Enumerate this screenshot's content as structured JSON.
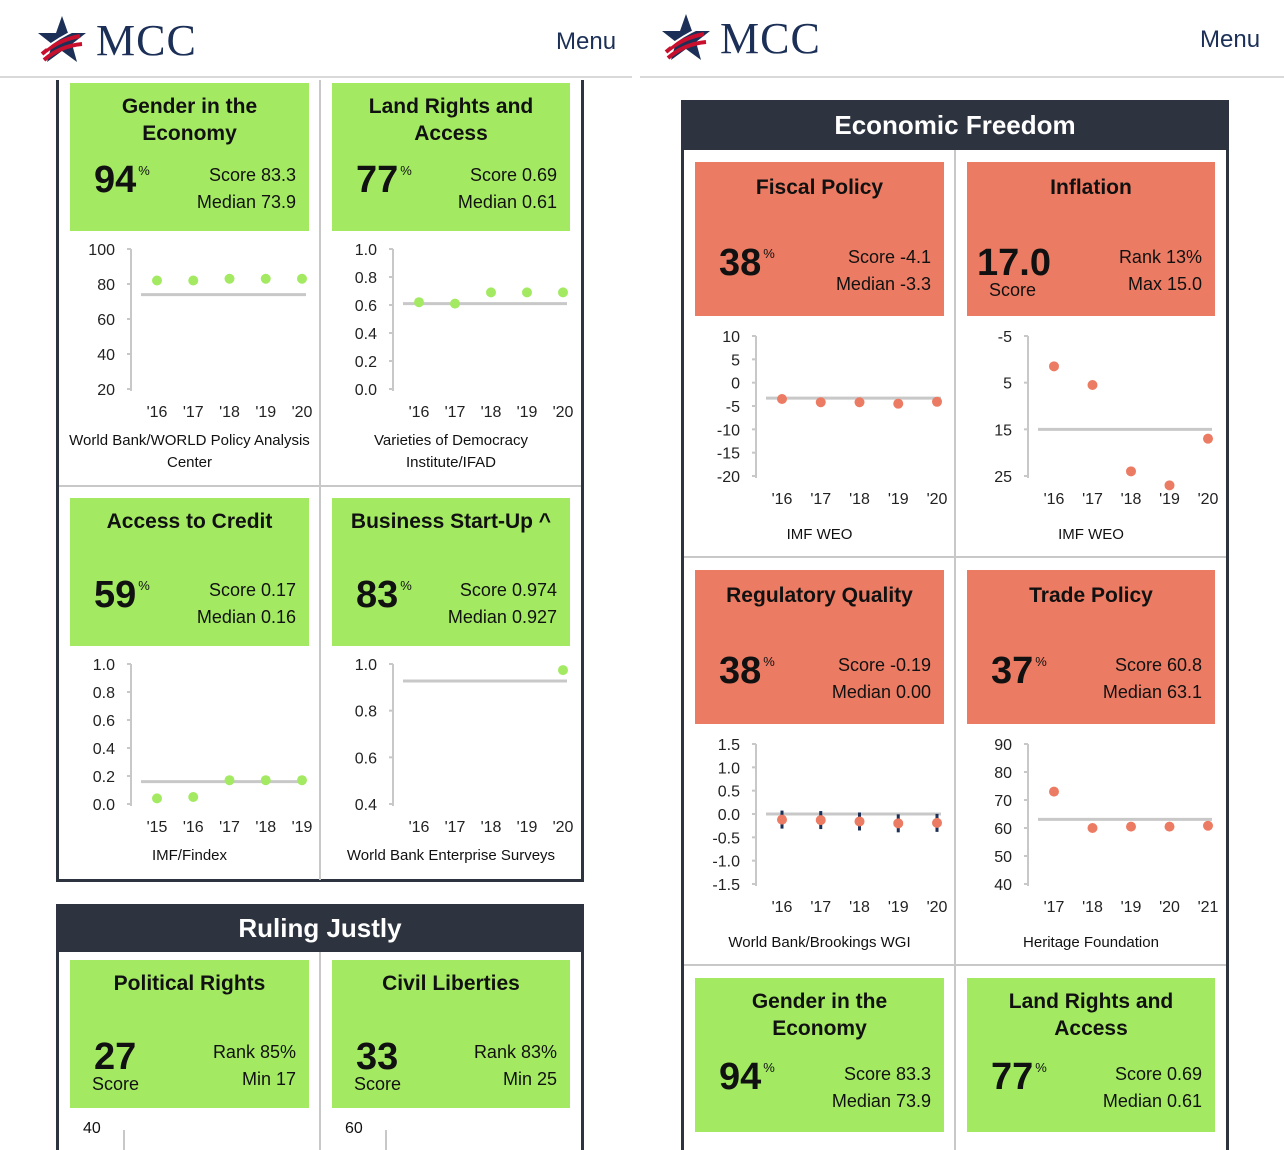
{
  "header": {
    "logo_text": "MCC",
    "menu_label": "Menu"
  },
  "colors": {
    "pass": "#a3ea62",
    "fail": "#ec7b63",
    "dot_pass": "#a3ea62",
    "dot_fail": "#ec7b63",
    "median_line": "#c8c8c8",
    "section_bar": "#2d3440",
    "brand_navy": "#1b2f57"
  },
  "left": {
    "cards": [
      {
        "id": "gender",
        "title_lines": [
          "Gender in the",
          "Economy"
        ],
        "percent": "94",
        "pct_symbol": "%",
        "stat1": "Score 83.3",
        "stat2": "Median 73.9",
        "source_lines": [
          "World Bank/WORLD Policy Analysis",
          "Center"
        ]
      },
      {
        "id": "land",
        "title_lines": [
          "Land Rights and",
          "Access"
        ],
        "percent": "77",
        "pct_symbol": "%",
        "stat1": "Score 0.69",
        "stat2": "Median 0.61",
        "source_lines": [
          "Varieties of Democracy",
          "Institute/IFAD"
        ]
      },
      {
        "id": "credit",
        "title_lines": [
          "Access to Credit"
        ],
        "percent": "59",
        "pct_symbol": "%",
        "stat1": "Score 0.17",
        "stat2": "Median 0.16",
        "source_lines": [
          "IMF/Findex"
        ]
      },
      {
        "id": "startup",
        "title_lines": [
          "Business Start-Up ^"
        ],
        "percent": "83",
        "pct_symbol": "%",
        "stat1": "Score 0.974",
        "stat2": "Median 0.927",
        "source_lines": [
          "World Bank Enterprise Surveys"
        ]
      }
    ],
    "ruling_title": "Ruling Justly",
    "ruling_cards": [
      {
        "id": "political",
        "title": "Political Rights",
        "value": "27",
        "value_label": "Score",
        "stat1": "Rank 85%",
        "stat2": "Min 17",
        "next_tick": "40"
      },
      {
        "id": "civil",
        "title": "Civil Liberties",
        "value": "33",
        "value_label": "Score",
        "stat1": "Rank 83%",
        "stat2": "Min 25",
        "next_tick": "60"
      }
    ]
  },
  "right": {
    "section_title": "Economic Freedom",
    "cards": [
      {
        "id": "fiscal",
        "title_lines": [
          "Fiscal Policy"
        ],
        "percent": "38",
        "pct_symbol": "%",
        "stat1": "Score -4.1",
        "stat2": "Median -3.3",
        "source_lines": [
          "IMF WEO"
        ]
      },
      {
        "id": "inflation",
        "title_lines": [
          "Inflation"
        ],
        "value": "17.0",
        "value_label": "Score",
        "stat1": "Rank 13%",
        "stat2": "Max 15.0",
        "source_lines": [
          "IMF WEO"
        ]
      },
      {
        "id": "regulatory",
        "title_lines": [
          "Regulatory Quality"
        ],
        "percent": "38",
        "pct_symbol": "%",
        "stat1": "Score -0.19",
        "stat2": "Median 0.00",
        "source_lines": [
          "World Bank/Brookings WGI"
        ]
      },
      {
        "id": "trade",
        "title_lines": [
          "Trade Policy"
        ],
        "percent": "37",
        "pct_symbol": "%",
        "stat1": "Score 60.8",
        "stat2": "Median 63.1",
        "source_lines": [
          "Heritage Foundation"
        ]
      },
      {
        "id": "gender2",
        "title_lines": [
          "Gender in the",
          "Economy"
        ],
        "percent": "94",
        "pct_symbol": "%",
        "stat1": "Score 83.3",
        "stat2": "Median 73.9"
      },
      {
        "id": "land2",
        "title_lines": [
          "Land Rights and",
          "Access"
        ],
        "percent": "77",
        "pct_symbol": "%",
        "stat1": "Score 0.69",
        "stat2": "Median 0.61"
      }
    ]
  },
  "chart_data": [
    {
      "id": "gender",
      "type": "scatter",
      "title": "Gender in the Economy",
      "yticks": [
        "100",
        "80",
        "60",
        "40",
        "20"
      ],
      "ylim": [
        20,
        100
      ],
      "categories": [
        "'16",
        "'17",
        "'18",
        "'19",
        "'20"
      ],
      "values": [
        82,
        82,
        83,
        83,
        83
      ],
      "median": 73.9,
      "dot_color": "pass"
    },
    {
      "id": "land",
      "type": "scatter",
      "title": "Land Rights and Access",
      "yticks": [
        "1.0",
        "0.8",
        "0.6",
        "0.4",
        "0.2",
        "0.0"
      ],
      "ylim": [
        0,
        1
      ],
      "categories": [
        "'16",
        "'17",
        "'18",
        "'19",
        "'20"
      ],
      "values": [
        0.62,
        0.61,
        0.69,
        0.69,
        0.69
      ],
      "median": 0.61,
      "dot_color": "pass"
    },
    {
      "id": "credit",
      "type": "scatter",
      "title": "Access to Credit",
      "yticks": [
        "1.0",
        "0.8",
        "0.6",
        "0.4",
        "0.2",
        "0.0"
      ],
      "ylim": [
        0,
        1
      ],
      "categories": [
        "'15",
        "'16",
        "'17",
        "'18",
        "'19"
      ],
      "values": [
        0.04,
        0.05,
        0.17,
        0.17,
        0.17
      ],
      "median": 0.16,
      "dot_color": "pass"
    },
    {
      "id": "startup",
      "type": "scatter",
      "title": "Business Start-Up ^",
      "yticks": [
        "1.0",
        "0.8",
        "0.6",
        "0.4"
      ],
      "ylim": [
        0.4,
        1
      ],
      "categories": [
        "'16",
        "'17",
        "'18",
        "'19",
        "'20"
      ],
      "values": [
        null,
        null,
        null,
        null,
        0.974
      ],
      "median": 0.927,
      "dot_color": "pass"
    },
    {
      "id": "fiscal",
      "type": "scatter",
      "title": "Fiscal Policy",
      "yticks": [
        "10",
        "5",
        "0",
        "-5",
        "-10",
        "-15",
        "-20"
      ],
      "ylim": [
        -20,
        10
      ],
      "categories": [
        "'16",
        "'17",
        "'18",
        "'19",
        "'20"
      ],
      "values": [
        -3.5,
        -4.2,
        -4.2,
        -4.5,
        -4.1
      ],
      "median": -3.3,
      "dot_color": "fail"
    },
    {
      "id": "inflation",
      "type": "scatter",
      "title": "Inflation",
      "yticks": [
        "-5",
        "5",
        "15",
        "25"
      ],
      "ylim": [
        -5,
        25
      ],
      "inverted": true,
      "categories": [
        "'16",
        "'17",
        "'18",
        "'19",
        "'20"
      ],
      "values": [
        1.5,
        5.5,
        24,
        27,
        17
      ],
      "median": 15,
      "dot_color": "fail"
    },
    {
      "id": "regulatory",
      "type": "scatter",
      "title": "Regulatory Quality",
      "yticks": [
        "1.5",
        "1.0",
        "0.5",
        "0.0",
        "-0.5",
        "-1.0",
        "-1.5"
      ],
      "ylim": [
        -1.5,
        1.5
      ],
      "categories": [
        "'16",
        "'17",
        "'18",
        "'19",
        "'20"
      ],
      "values": [
        -0.12,
        -0.13,
        -0.16,
        -0.2,
        -0.19
      ],
      "median": 0.0,
      "error_bars": true,
      "dot_color": "fail"
    },
    {
      "id": "trade",
      "type": "scatter",
      "title": "Trade Policy",
      "yticks": [
        "90",
        "80",
        "70",
        "60",
        "50",
        "40"
      ],
      "ylim": [
        40,
        90
      ],
      "categories": [
        "'17",
        "'18",
        "'19",
        "'20",
        "'21"
      ],
      "values": [
        73,
        60,
        60.5,
        60.5,
        60.8
      ],
      "median": 63.1,
      "dot_color": "fail"
    }
  ]
}
